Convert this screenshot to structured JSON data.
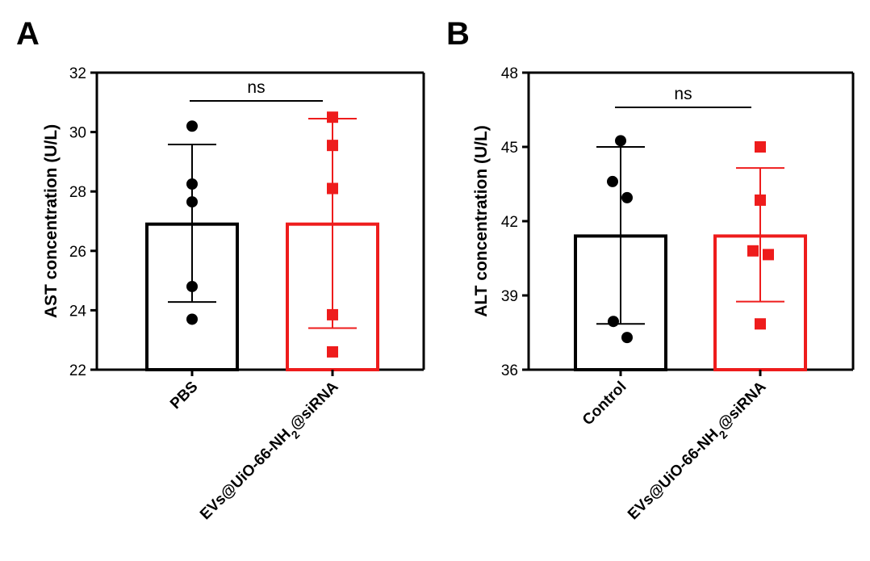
{
  "panels": {
    "a": {
      "letter": "A"
    },
    "b": {
      "letter": "B"
    }
  },
  "colors": {
    "black": "#000000",
    "red": "#ee1c1c"
  },
  "chart_data": [
    {
      "type": "bar",
      "panel": "A",
      "ylabel": "AST concentration (U/L)",
      "ylim": [
        22,
        32
      ],
      "yticks": [
        22,
        24,
        26,
        28,
        30,
        32
      ],
      "significance": "ns",
      "categories": [
        {
          "label": "PBS",
          "sub": ""
        },
        {
          "label_pre": "EVs@UiO-66-NH",
          "sub": "2",
          "label_post": "@siRNA"
        }
      ],
      "series": [
        {
          "name": "PBS",
          "mean": 26.9,
          "sd_low": 24.28,
          "sd_high": 29.58,
          "marker": "circle",
          "color": "#000000",
          "points": [
            30.2,
            28.25,
            27.65,
            24.8,
            23.7
          ]
        },
        {
          "name": "EVs@UiO-66-NH2@siRNA",
          "mean": 26.9,
          "sd_low": 23.4,
          "sd_high": 30.45,
          "marker": "square",
          "color": "#ee1c1c",
          "points": [
            30.5,
            29.55,
            28.1,
            23.85,
            22.6
          ]
        }
      ]
    },
    {
      "type": "bar",
      "panel": "B",
      "ylabel": "ALT concentration (U/L)",
      "ylim": [
        36,
        48
      ],
      "yticks": [
        36,
        39,
        42,
        45,
        48
      ],
      "significance": "ns",
      "categories": [
        {
          "label": "Control",
          "sub": ""
        },
        {
          "label_pre": "EVs@UiO-66-NH",
          "sub": "2",
          "label_post": "@siRNA"
        }
      ],
      "series": [
        {
          "name": "Control",
          "mean": 41.4,
          "sd_low": 37.85,
          "sd_high": 45.0,
          "marker": "circle",
          "color": "#000000",
          "points": [
            45.25,
            43.6,
            42.95,
            37.95,
            37.3
          ]
        },
        {
          "name": "EVs@UiO-66-NH2@siRNA",
          "mean": 41.4,
          "sd_low": 38.75,
          "sd_high": 44.15,
          "marker": "square",
          "color": "#ee1c1c",
          "points": [
            45.0,
            42.85,
            40.8,
            40.65,
            37.85
          ]
        }
      ]
    }
  ]
}
